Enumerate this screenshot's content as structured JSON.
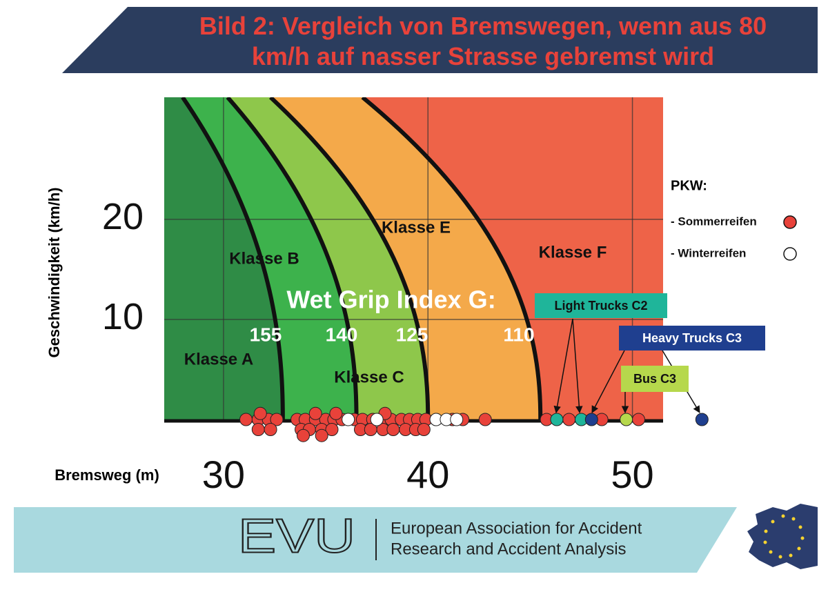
{
  "chart_data": {
    "type": "scatter",
    "title": "Bild 2: Vergleich von Bremswegen, wenn aus 80 km/h auf nasser Strasse gebremst wird",
    "x_label": "Bremsweg (m)",
    "y_label": "Geschwindigkeit (km/h)",
    "xlim": [
      27.1,
      51.5
    ],
    "ylim": [
      -2,
      32.2
    ],
    "xticks": [
      30,
      40,
      50
    ],
    "yticks": [
      10,
      20
    ],
    "grid": true,
    "legend_title": "PKW:",
    "classes": [
      {
        "label": "Klasse A",
        "color": "#2f8c46"
      },
      {
        "label": "Klasse B",
        "color": "#3db24c"
      },
      {
        "label": "Klasse C",
        "color": "#8ec74b"
      },
      {
        "label": "Klasse E",
        "color": "#f4a94a"
      },
      {
        "label": "Klasse F",
        "color": "#ee6348"
      }
    ],
    "grip_index": {
      "title": "Wet Grip Index G:",
      "curves": [
        {
          "value": 155,
          "x_top": 28.0,
          "x_bottom": 32.9
        },
        {
          "value": 140,
          "x_top": 30.2,
          "x_bottom": 36.5
        },
        {
          "value": 125,
          "x_top": 32.3,
          "x_bottom": 40.0
        },
        {
          "value": 110,
          "x_top": 36.8,
          "x_bottom": 45.5
        }
      ]
    },
    "series": [
      {
        "name": "- Sommerreifen",
        "color": "#e8423a",
        "x": [
          31.1,
          31.7,
          32.2,
          32.6,
          33.6,
          34.0,
          34.5,
          35.0,
          35.4,
          35.8,
          36.4,
          36.8,
          37.3,
          37.8,
          38.2,
          38.7,
          39.1,
          39.5,
          39.9,
          40.4,
          41.2,
          41.7,
          42.8,
          45.8,
          46.9,
          48.5,
          50.3,
          31.7,
          32.3,
          33.8,
          34.2,
          34.8,
          35.3,
          36.7,
          37.2,
          37.8,
          38.3,
          38.9,
          39.4,
          39.8,
          33.9,
          34.8,
          31.8,
          34.5,
          35.5,
          37.9
        ],
        "y": [
          0,
          0,
          0,
          0,
          0,
          0,
          0,
          0,
          0,
          0,
          0,
          0,
          0,
          0,
          0,
          0,
          0,
          0,
          0,
          0,
          0,
          0,
          0,
          0,
          0,
          0,
          0,
          -1,
          -1,
          -1,
          -1,
          -1,
          -1,
          -1,
          -1,
          -1,
          -1,
          -1,
          -1,
          -1,
          -1.6,
          -1.6,
          0.6,
          0.6,
          0.6,
          0.6
        ]
      },
      {
        "name": "- Winterreifen",
        "color": "#ffffff",
        "x": [
          36.1,
          37.5,
          40.4,
          40.9,
          41.4
        ],
        "y": [
          0,
          0,
          0,
          0,
          0
        ]
      },
      {
        "name": "Light Trucks C2",
        "color": "#1fb59a",
        "x": [
          46.3,
          47.5
        ],
        "y": [
          0,
          0
        ]
      },
      {
        "name": "Heavy Trucks C3",
        "color": "#1f3f8f",
        "x": [
          48.0,
          53.4
        ],
        "y": [
          0,
          0
        ]
      },
      {
        "name": "Bus C3",
        "color": "#b6d84c",
        "x": [
          49.7
        ],
        "y": [
          0
        ]
      }
    ]
  },
  "footer": {
    "logo": "EVU",
    "lines": [
      "European Association for Accident",
      "Research and Accident Analysis"
    ]
  }
}
